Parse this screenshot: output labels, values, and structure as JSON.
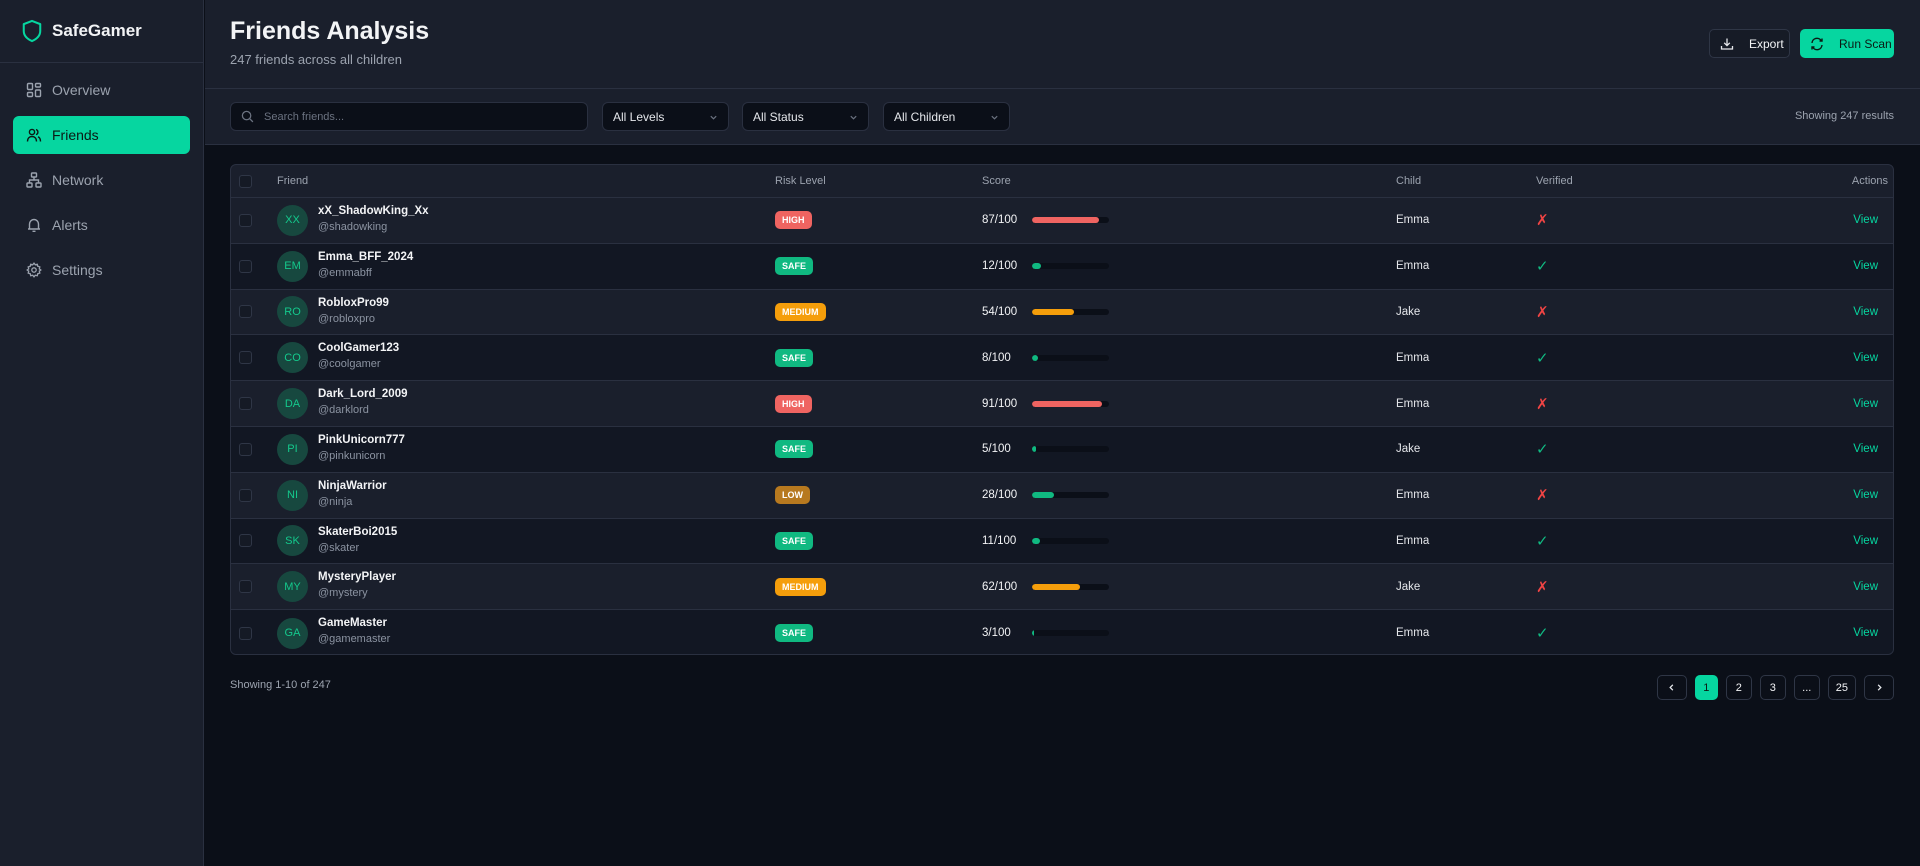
{
  "app": {
    "name": "SafeGamer",
    "accent": "#06d6a0"
  },
  "sidebar": {
    "items": [
      {
        "label": "Overview",
        "icon": "grid-icon",
        "active": false
      },
      {
        "label": "Friends",
        "icon": "users-icon",
        "active": true
      },
      {
        "label": "Network",
        "icon": "network-icon",
        "active": false
      },
      {
        "label": "Alerts",
        "icon": "bell-icon",
        "active": false
      },
      {
        "label": "Settings",
        "icon": "gear-icon",
        "active": false
      }
    ]
  },
  "header": {
    "title": "Friends Analysis",
    "subtitle": "247 friends across all children",
    "export_label": "Export",
    "scan_label": "Run Scan"
  },
  "filters": {
    "search_placeholder": "Search friends...",
    "search_value": "",
    "level": "All Levels",
    "status": "All Status",
    "children": "All Children",
    "results": "Showing 247 results"
  },
  "table": {
    "headers": {
      "friend": "Friend",
      "risk": "Risk Level",
      "score": "Score",
      "child": "Child",
      "verified": "Verified",
      "actions": "Actions"
    },
    "action_label": "View",
    "risk_colors": {
      "HIGH": "#ef6461",
      "SAFE": "#10b981",
      "MEDIUM": "#f59e0b",
      "LOW": "#b7791f"
    },
    "rows": [
      {
        "initials": "XX",
        "name": "xX_ShadowKing_Xx",
        "handle": "@shadowking",
        "risk": "HIGH",
        "score": 87,
        "score_text": "87/100",
        "child": "Emma",
        "verified": false,
        "verified_glyph": "✗"
      },
      {
        "initials": "EM",
        "name": "Emma_BFF_2024",
        "handle": "@emmabff",
        "risk": "SAFE",
        "score": 12,
        "score_text": "12/100",
        "child": "Emma",
        "verified": true,
        "verified_glyph": "✓"
      },
      {
        "initials": "RO",
        "name": "RobloxPro99",
        "handle": "@robloxpro",
        "risk": "MEDIUM",
        "score": 54,
        "score_text": "54/100",
        "child": "Jake",
        "verified": false,
        "verified_glyph": "✗"
      },
      {
        "initials": "CO",
        "name": "CoolGamer123",
        "handle": "@coolgamer",
        "risk": "SAFE",
        "score": 8,
        "score_text": "8/100",
        "child": "Emma",
        "verified": true,
        "verified_glyph": "✓"
      },
      {
        "initials": "DA",
        "name": "Dark_Lord_2009",
        "handle": "@darklord",
        "risk": "HIGH",
        "score": 91,
        "score_text": "91/100",
        "child": "Emma",
        "verified": false,
        "verified_glyph": "✗"
      },
      {
        "initials": "PI",
        "name": "PinkUnicorn777",
        "handle": "@pinkunicorn",
        "risk": "SAFE",
        "score": 5,
        "score_text": "5/100",
        "child": "Jake",
        "verified": true,
        "verified_glyph": "✓"
      },
      {
        "initials": "NI",
        "name": "NinjaWarrior",
        "handle": "@ninja",
        "risk": "LOW",
        "score": 28,
        "score_text": "28/100",
        "child": "Emma",
        "verified": false,
        "verified_glyph": "✗"
      },
      {
        "initials": "SK",
        "name": "SkaterBoi2015",
        "handle": "@skater",
        "risk": "SAFE",
        "score": 11,
        "score_text": "11/100",
        "child": "Emma",
        "verified": true,
        "verified_glyph": "✓"
      },
      {
        "initials": "MY",
        "name": "MysteryPlayer",
        "handle": "@mystery",
        "risk": "MEDIUM",
        "score": 62,
        "score_text": "62/100",
        "child": "Jake",
        "verified": false,
        "verified_glyph": "✗"
      },
      {
        "initials": "GA",
        "name": "GameMaster",
        "handle": "@gamemaster",
        "risk": "SAFE",
        "score": 3,
        "score_text": "3/100",
        "child": "Emma",
        "verified": true,
        "verified_glyph": "✓"
      }
    ]
  },
  "footer": {
    "page_info": "Showing 1-10 of 247",
    "pages": [
      "1",
      "2",
      "3",
      "...",
      "25"
    ],
    "current_page": "1"
  }
}
